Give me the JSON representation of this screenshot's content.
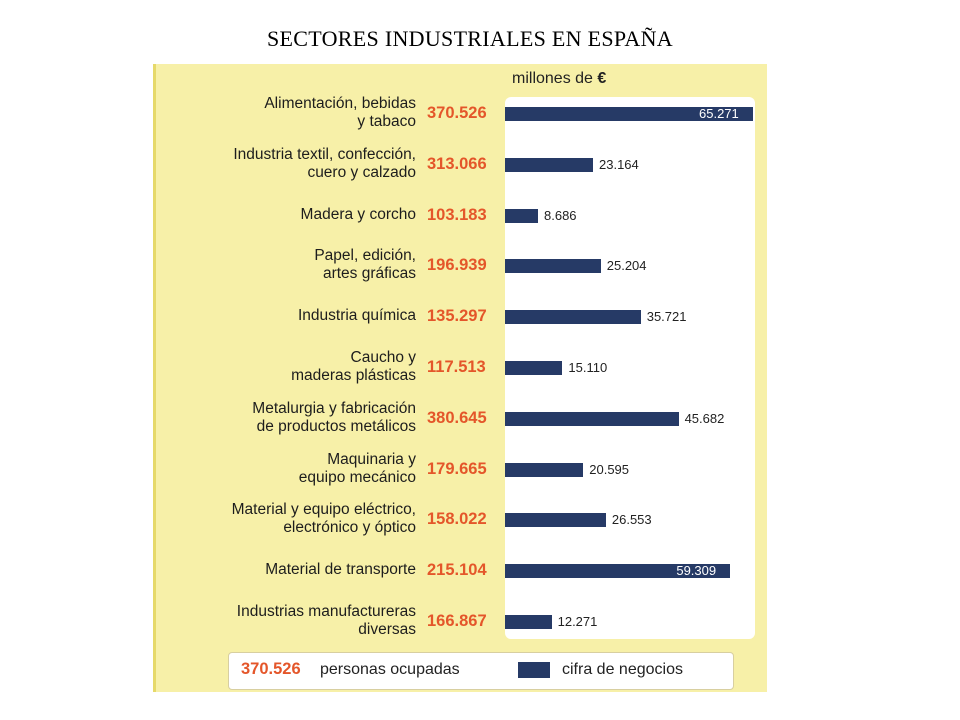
{
  "title": "SECTORES INDUSTRIALES EN ESPAÑA",
  "unit_label": "millones de",
  "unit_symbol": "€",
  "legend": {
    "employed_sample": "370.526",
    "employed_label": "personas ocupadas",
    "revenue_label": "cifra de negocios"
  },
  "colors": {
    "panel": "#f7f0a8",
    "bar": "#263a66",
    "employed_text": "#e4562a"
  },
  "chart_data": {
    "type": "bar",
    "orientation": "horizontal",
    "title": "SECTORES INDUSTRIALES EN ESPAÑA",
    "xlabel": "millones de €",
    "categories": [
      [
        "Alimentación, bebidas",
        "y tabaco"
      ],
      [
        "Industria textil, confección,",
        "cuero y calzado"
      ],
      [
        "Madera y corcho"
      ],
      [
        "Papel, edición,",
        "artes gráficas"
      ],
      [
        "Industria química"
      ],
      [
        "Caucho y",
        "maderas plásticas"
      ],
      [
        "Metalurgia y fabricación",
        "de productos metálicos"
      ],
      [
        "Maquinaria y",
        "equipo mecánico"
      ],
      [
        "Material y equipo eléctrico,",
        "electrónico y óptico"
      ],
      [
        "Material de transporte"
      ],
      [
        "Industrias manufactureras",
        "diversas"
      ]
    ],
    "series": [
      {
        "name": "personas ocupadas",
        "labels": [
          "370.526",
          "313.066",
          "103.183",
          "196.939",
          "135.297",
          "117.513",
          "380.645",
          "179.665",
          "158.022",
          "215.104",
          "166.867"
        ],
        "values": [
          370526,
          313066,
          103183,
          196939,
          135297,
          117513,
          380645,
          179665,
          158022,
          215104,
          166867
        ]
      },
      {
        "name": "cifra de negocios",
        "labels": [
          "65.271",
          "23.164",
          "8.686",
          "25.204",
          "35.721",
          "15.110",
          "45.682",
          "20.595",
          "26.553",
          "59.309",
          "12.271"
        ],
        "values": [
          65271,
          23164,
          8686,
          25204,
          35721,
          15110,
          45682,
          20595,
          26553,
          59309,
          12271
        ]
      }
    ],
    "xlim": [
      0,
      65271
    ]
  }
}
